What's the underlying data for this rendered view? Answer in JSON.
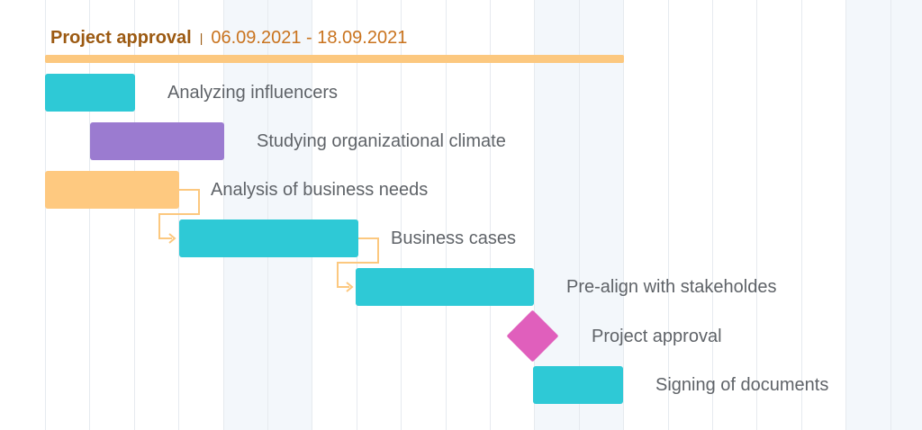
{
  "summary": {
    "name": "Project approval",
    "separator": "|",
    "dates": "06.09.2021 - 18.09.2021"
  },
  "tasks": [
    {
      "name": "Analyzing influencers",
      "color": "#2ec9d6"
    },
    {
      "name": "Studying organizational climate",
      "color": "#9b7bd0"
    },
    {
      "name": "Analysis of business needs",
      "color": "#fec980"
    },
    {
      "name": "Business cases",
      "color": "#2ec9d6"
    },
    {
      "name": "Pre-align with stakeholdes",
      "color": "#2ec9d6"
    },
    {
      "name": "Project approval",
      "color": "#e05fbc",
      "milestone": true
    },
    {
      "name": "Signing of documents",
      "color": "#2ec9d6"
    }
  ],
  "colors": {
    "summary_bar": "#fcc87f",
    "dependency_link": "#fcc87f",
    "weekend_shade": "#f3f7fb",
    "grid_line": "#e6eaef"
  }
}
